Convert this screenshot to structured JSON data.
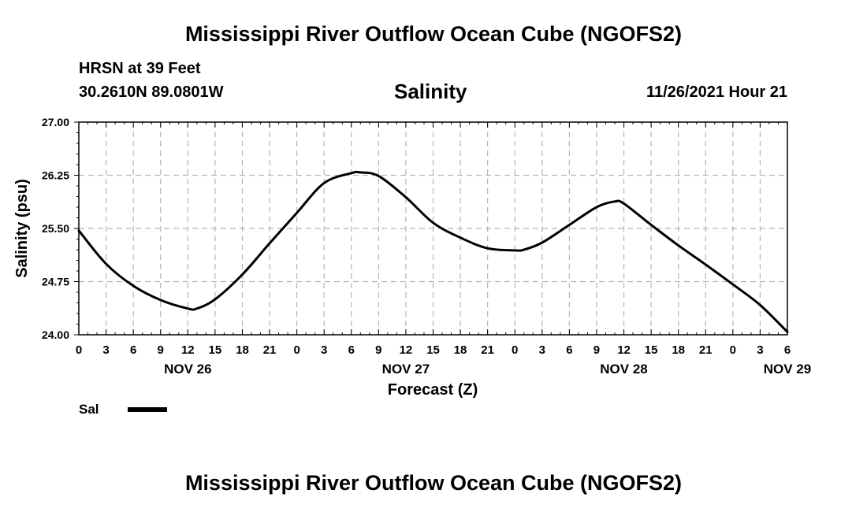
{
  "header": {
    "title": "Mississippi River Outflow Ocean Cube (NGOFS2)",
    "station": "HRSN at 39 Feet",
    "coords": "30.2610N  89.0801W",
    "datetime": "11/26/2021 Hour 21"
  },
  "footer": {
    "title": "Mississippi River Outflow Ocean Cube (NGOFS2)"
  },
  "legend": {
    "label": "Sal"
  },
  "chart_data": {
    "type": "line",
    "title": "Salinity",
    "xlabel": "Forecast (Z)",
    "ylabel": "Salinity (psu)",
    "xlim": [
      0,
      78
    ],
    "ylim": [
      24.0,
      27.0
    ],
    "yticks": [
      24.0,
      24.75,
      25.5,
      26.25,
      27.0
    ],
    "ytick_labels": [
      "24.00",
      "24.75",
      "25.50",
      "26.25",
      "27.00"
    ],
    "xtick_hours": [
      0,
      3,
      6,
      9,
      12,
      15,
      18,
      21,
      24,
      27,
      30,
      33,
      36,
      39,
      42,
      45,
      48,
      51,
      54,
      57,
      60,
      63,
      66,
      69,
      72,
      75,
      78
    ],
    "xtick_labels": [
      "0",
      "3",
      "6",
      "9",
      "12",
      "15",
      "18",
      "21",
      "0",
      "3",
      "6",
      "9",
      "12",
      "15",
      "18",
      "21",
      "0",
      "3",
      "6",
      "9",
      "12",
      "15",
      "18",
      "21",
      "0",
      "3",
      "6"
    ],
    "day_labels": [
      {
        "hour": 12,
        "label": "NOV 26"
      },
      {
        "hour": 36,
        "label": "NOV 27"
      },
      {
        "hour": 60,
        "label": "NOV 28"
      },
      {
        "hour": 78,
        "label": "NOV 29"
      }
    ],
    "grid": true,
    "series": [
      {
        "name": "Sal",
        "color": "#000000",
        "x": [
          0,
          3,
          6,
          9,
          12,
          13,
          15,
          18,
          21,
          24,
          27,
          30,
          31,
          33,
          36,
          39,
          42,
          45,
          48,
          49,
          51,
          54,
          57,
          59,
          60,
          63,
          66,
          69,
          72,
          75,
          78
        ],
        "y": [
          25.47,
          25.0,
          24.69,
          24.49,
          24.37,
          24.37,
          24.5,
          24.85,
          25.29,
          25.72,
          26.14,
          26.28,
          26.29,
          26.24,
          25.94,
          25.58,
          25.37,
          25.22,
          25.19,
          25.2,
          25.3,
          25.55,
          25.8,
          25.88,
          25.85,
          25.55,
          25.26,
          24.99,
          24.71,
          24.42,
          24.04
        ]
      }
    ]
  }
}
